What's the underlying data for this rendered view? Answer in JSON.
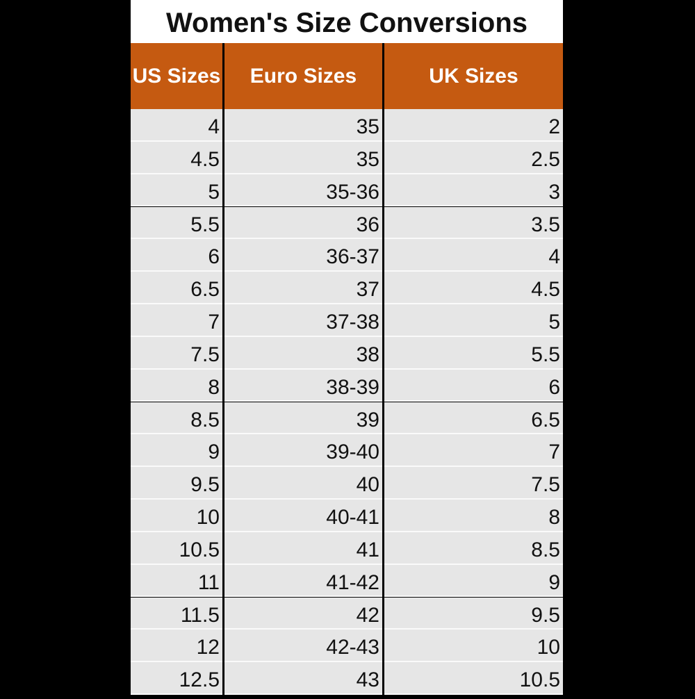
{
  "title": "Women's Size Conversions",
  "table": {
    "header": [
      "US Sizes",
      "Euro Sizes",
      "UK Sizes"
    ],
    "rows": [
      [
        "4",
        "35",
        "2"
      ],
      [
        "4.5",
        "35",
        "2.5"
      ],
      [
        "5",
        "35-36",
        "3"
      ],
      [
        "5.5",
        "36",
        "3.5"
      ],
      [
        "6",
        "36-37",
        "4"
      ],
      [
        "6.5",
        "37",
        "4.5"
      ],
      [
        "7",
        "37-38",
        "5"
      ],
      [
        "7.5",
        "38",
        "5.5"
      ],
      [
        "8",
        "38-39",
        "6"
      ],
      [
        "8.5",
        "39",
        "6.5"
      ],
      [
        "9",
        "39-40",
        "7"
      ],
      [
        "9.5",
        "40",
        "7.5"
      ],
      [
        "10",
        "40-41",
        "8"
      ],
      [
        "10.5",
        "41",
        "8.5"
      ],
      [
        "11",
        "41-42",
        "9"
      ],
      [
        "11.5",
        "42",
        "9.5"
      ],
      [
        "12",
        "42-43",
        "10"
      ],
      [
        "12.5",
        "43",
        "10.5"
      ]
    ]
  }
}
